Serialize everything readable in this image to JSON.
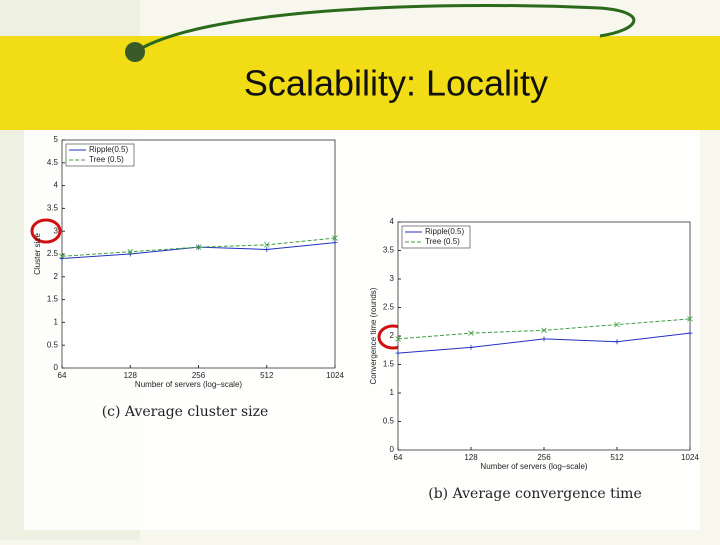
{
  "slide": {
    "title": "Scalability: Locality"
  },
  "chart_data": [
    {
      "type": "line",
      "caption": "(c) Average cluster size",
      "xlabel": "Number of servers (log–scale)",
      "ylabel": "Cluster size",
      "x": [
        64,
        128,
        256,
        512,
        1024
      ],
      "xlim": [
        64,
        1024
      ],
      "xticks": [
        64,
        128,
        256,
        512,
        1024
      ],
      "xscale": "log",
      "ylim": [
        0,
        5
      ],
      "yticks": [
        0,
        0.5,
        1,
        1.5,
        2,
        2.5,
        3,
        3.5,
        4,
        4.5,
        5
      ],
      "legend": "upper left",
      "series": [
        {
          "name": "Ripple(0.5)",
          "color": "#2030c0",
          "values": [
            2.4,
            2.5,
            2.65,
            2.6,
            2.75
          ]
        },
        {
          "name": "Tree (0.5)",
          "color": "#40a040",
          "values": [
            2.45,
            2.55,
            2.65,
            2.7,
            2.85
          ]
        }
      ]
    },
    {
      "type": "line",
      "caption": "(b) Average convergence time",
      "xlabel": "Number of servers (log–scale)",
      "ylabel": "Convergence time (rounds)",
      "x": [
        64,
        128,
        256,
        512,
        1024
      ],
      "xlim": [
        64,
        1024
      ],
      "xticks": [
        64,
        128,
        256,
        512,
        1024
      ],
      "xscale": "log",
      "ylim": [
        0,
        4
      ],
      "yticks": [
        0,
        0.5,
        1,
        1.5,
        2,
        2.5,
        3,
        3.5,
        4
      ],
      "legend": "upper left",
      "series": [
        {
          "name": "Ripple(0.5)",
          "color": "#2030c0",
          "values": [
            1.7,
            1.8,
            1.95,
            1.9,
            2.05
          ]
        },
        {
          "name": "Tree (0.5)",
          "color": "#40a040",
          "values": [
            1.95,
            2.05,
            2.1,
            2.2,
            2.3
          ]
        }
      ]
    }
  ]
}
